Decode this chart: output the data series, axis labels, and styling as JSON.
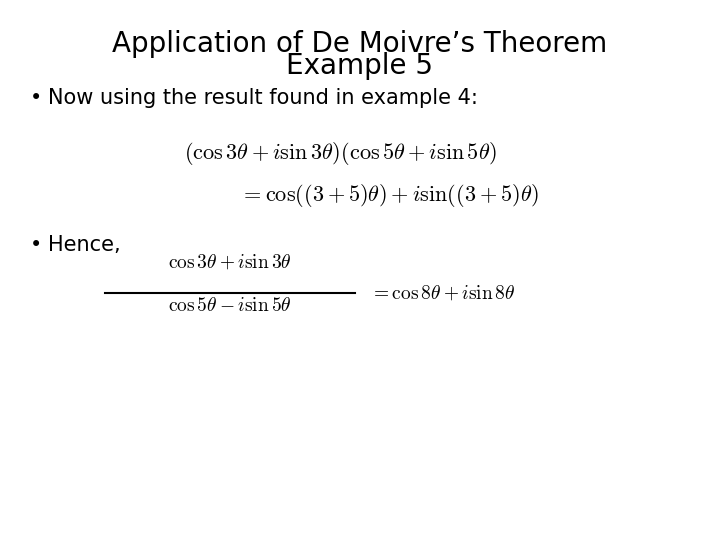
{
  "title_line1": "Application of De Moivre’s Theorem",
  "title_line2": "Example 5",
  "title_fontsize": 20,
  "bullet_fontsize": 15,
  "eq_fontsize": 14,
  "background_color": "#ffffff",
  "text_color": "#000000",
  "bullet1_text": "Now using the result found in example 4:",
  "bullet2_text": "Hence,"
}
